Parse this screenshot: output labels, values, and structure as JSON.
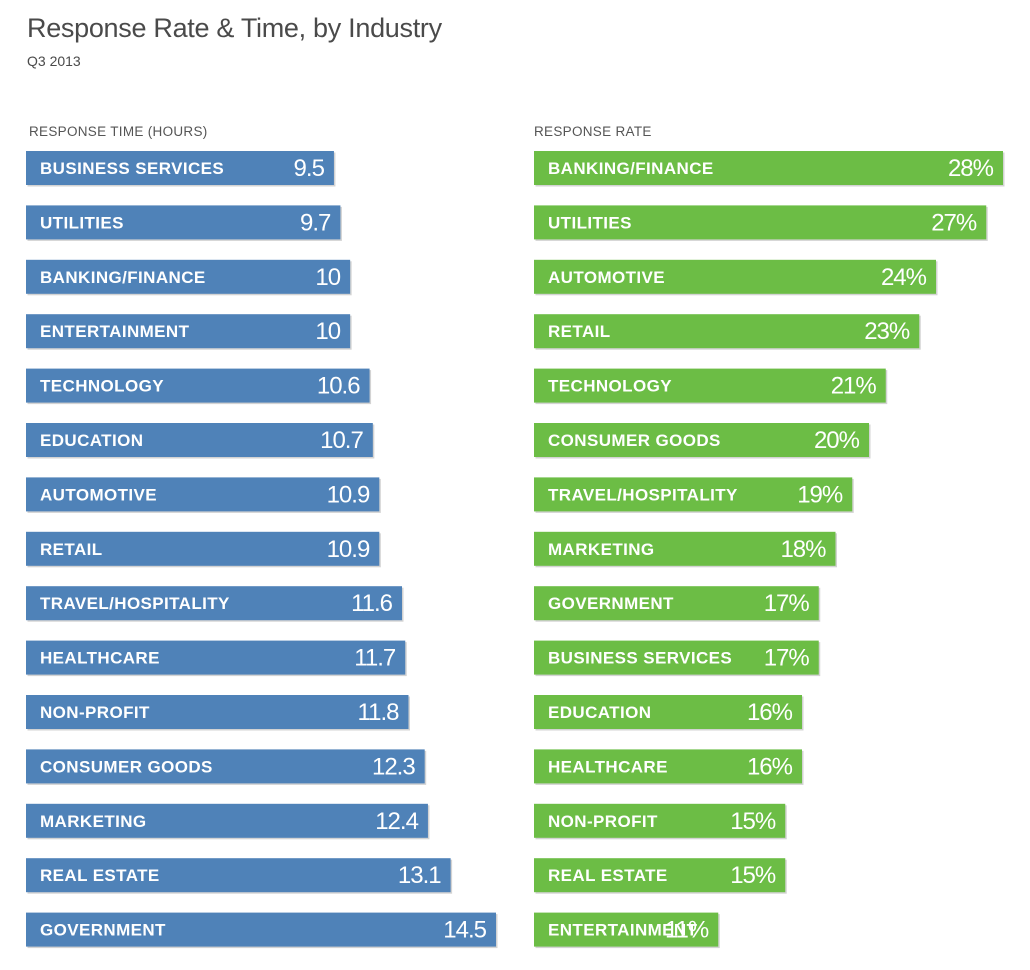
{
  "title": "Response Rate & Time, by Industry",
  "subtitle": "Q3 2013",
  "colors": {
    "time_bar": "#4f82b8",
    "rate_bar": "#6cbd45",
    "shadow": "#d3d3d3"
  },
  "chart_data": [
    {
      "type": "bar",
      "orientation": "horizontal",
      "title": "RESPONSE TIME (HOURS)",
      "unit": "hours",
      "categories": [
        "BUSINESS SERVICES",
        "UTILITIES",
        "BANKING/FINANCE",
        "ENTERTAINMENT",
        "TECHNOLOGY",
        "EDUCATION",
        "AUTOMOTIVE",
        "RETAIL",
        "TRAVEL/HOSPITALITY",
        "HEALTHCARE",
        "NON-PROFIT",
        "CONSUMER GOODS",
        "MARKETING",
        "REAL ESTATE",
        "GOVERNMENT"
      ],
      "values": [
        9.5,
        9.7,
        10,
        10,
        10.6,
        10.7,
        10.9,
        10.9,
        11.6,
        11.7,
        11.8,
        12.3,
        12.4,
        13.1,
        14.5
      ],
      "labels": [
        "9.5",
        "9.7",
        "10",
        "10",
        "10.6",
        "10.7",
        "10.9",
        "10.9",
        "11.6",
        "11.7",
        "11.8",
        "12.3",
        "12.4",
        "13.1",
        "14.5"
      ],
      "xlim": [
        0,
        14.5
      ]
    },
    {
      "type": "bar",
      "orientation": "horizontal",
      "title": "RESPONSE RATE",
      "unit": "percent",
      "categories": [
        "BANKING/FINANCE",
        "UTILITIES",
        "AUTOMOTIVE",
        "RETAIL",
        "TECHNOLOGY",
        "CONSUMER GOODS",
        "TRAVEL/HOSPITALITY",
        "MARKETING",
        "GOVERNMENT",
        "BUSINESS SERVICES",
        "EDUCATION",
        "HEALTHCARE",
        "NON-PROFIT",
        "REAL ESTATE",
        "ENTERTAINMENT"
      ],
      "values": [
        28,
        27,
        24,
        23,
        21,
        20,
        19,
        18,
        17,
        17,
        16,
        16,
        15,
        15,
        11
      ],
      "labels": [
        "28%",
        "27%",
        "24%",
        "23%",
        "21%",
        "20%",
        "19%",
        "18%",
        "17%",
        "17%",
        "16%",
        "16%",
        "15%",
        "15%",
        "11%"
      ],
      "xlim": [
        0,
        28
      ]
    }
  ]
}
